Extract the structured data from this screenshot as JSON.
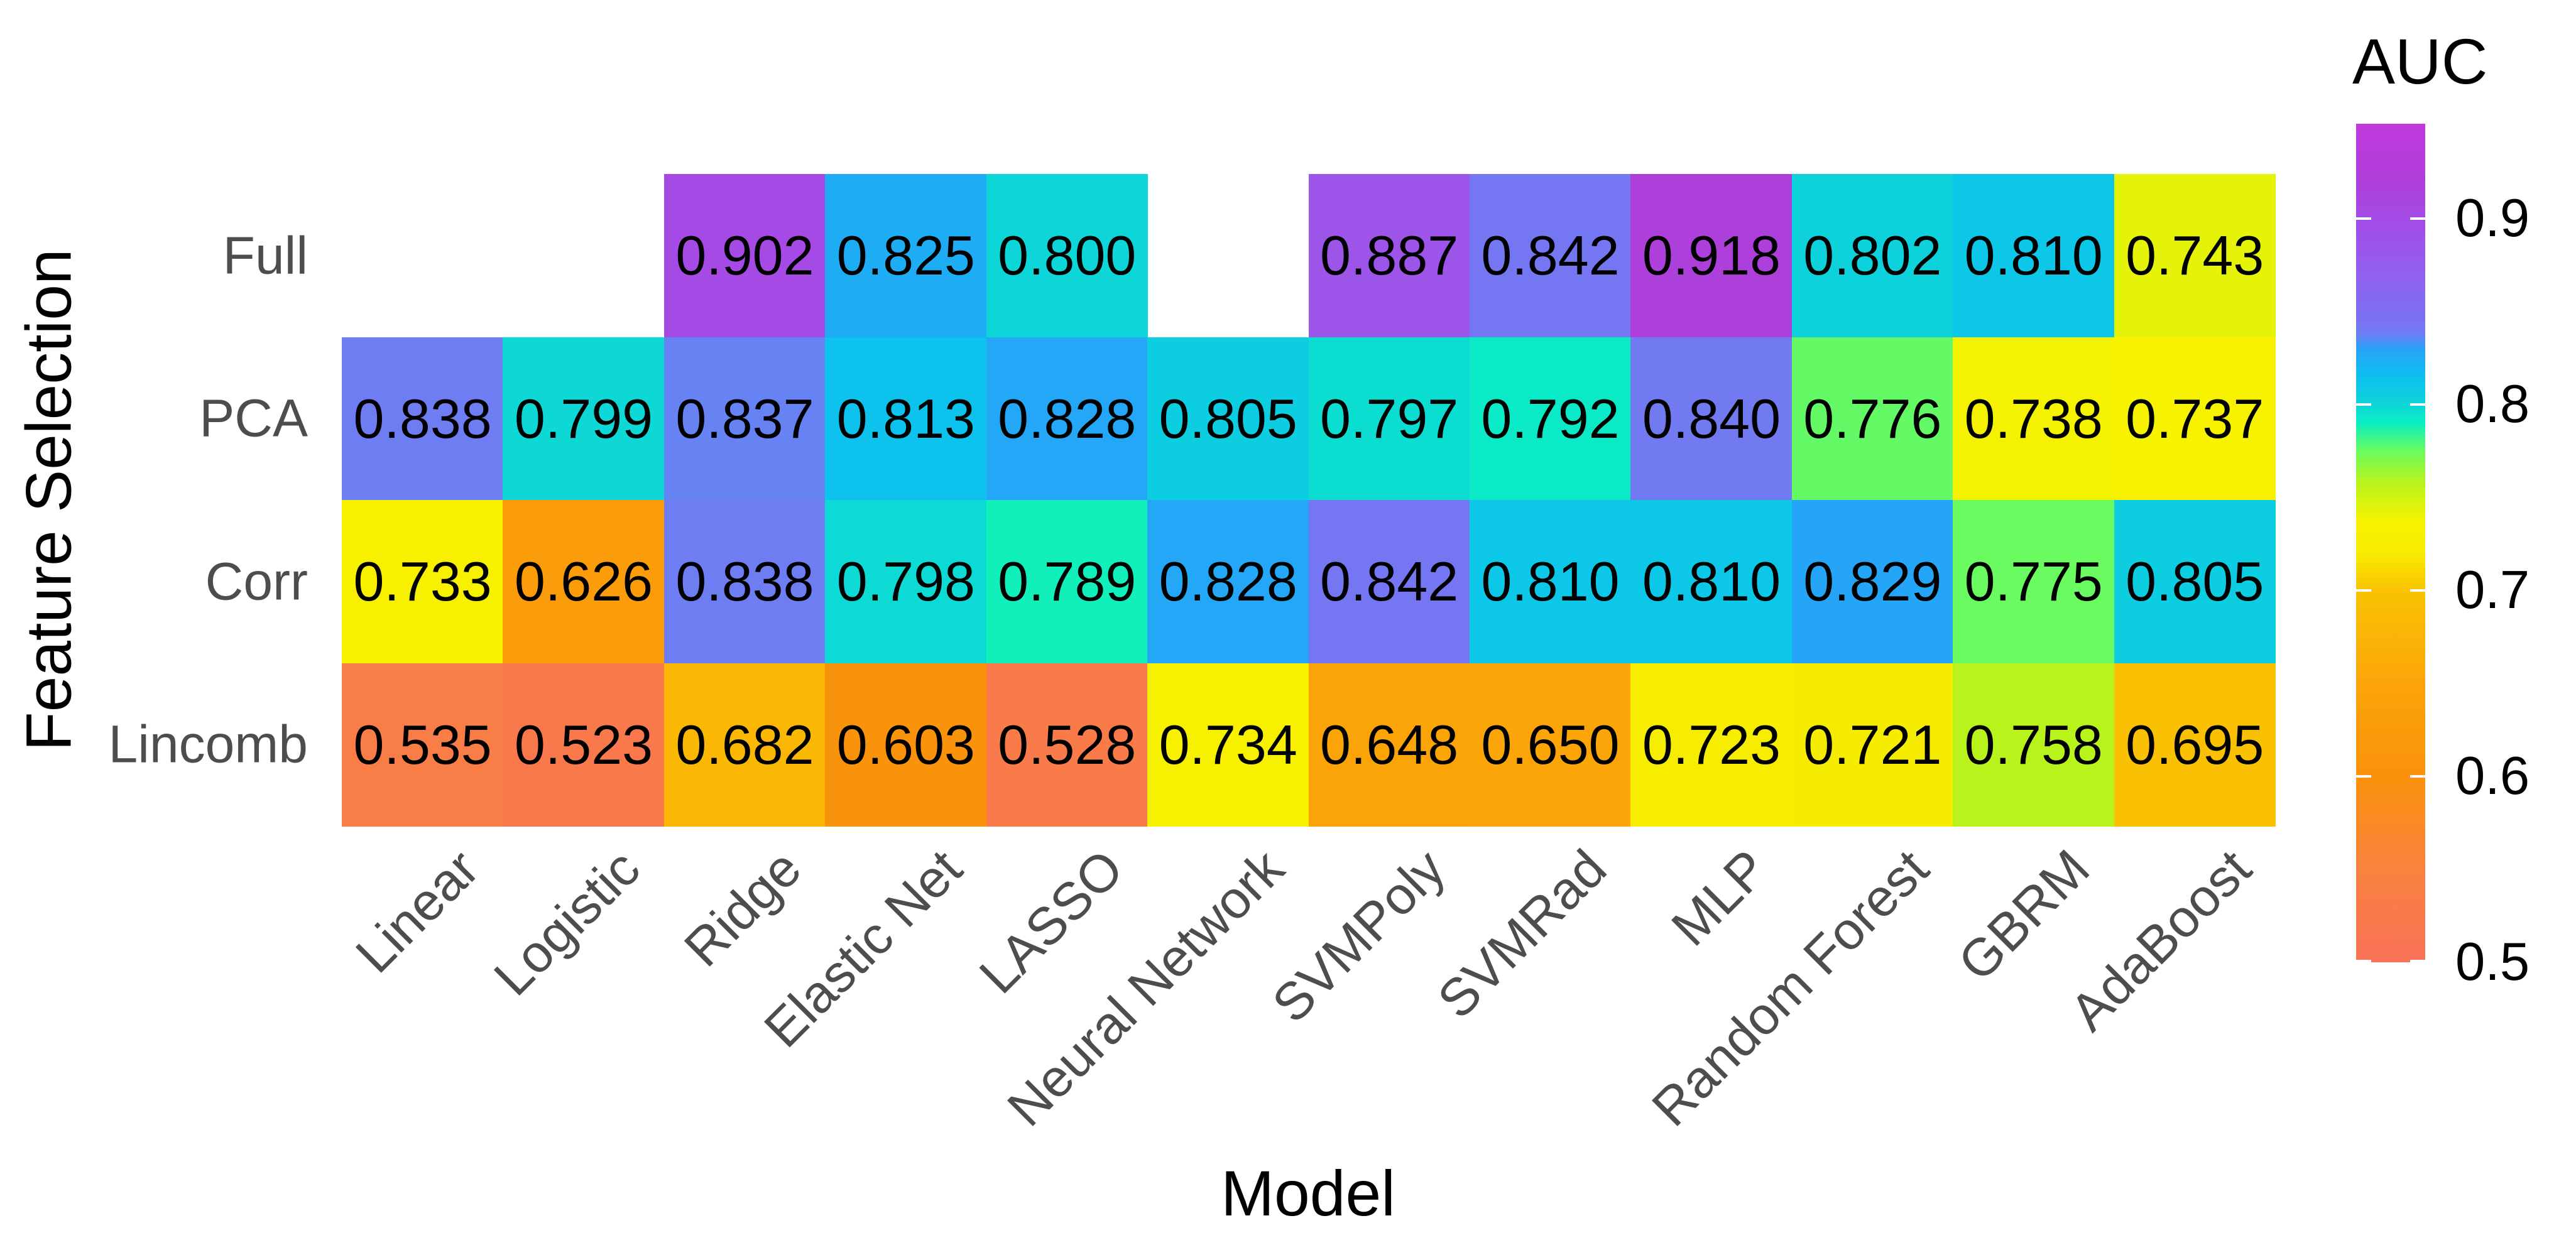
{
  "chart_data": {
    "type": "heatmap",
    "xlabel": "Model",
    "ylabel": "Feature Selection",
    "x_categories": [
      "Linear",
      "Logistic",
      "Ridge",
      "Elastic Net",
      "LASSO",
      "Neural Network",
      "SVMPoly",
      "SVMRad",
      "MLP",
      "Random Forest",
      "GBRM",
      "AdaBoost"
    ],
    "y_categories": [
      "Full",
      "PCA",
      "Corr",
      "Lincomb"
    ],
    "series": [
      {
        "name": "Full",
        "values": [
          null,
          null,
          0.902,
          0.825,
          0.8,
          null,
          0.887,
          0.842,
          0.918,
          0.802,
          0.81,
          0.743
        ]
      },
      {
        "name": "PCA",
        "values": [
          0.838,
          0.799,
          0.837,
          0.813,
          0.828,
          0.805,
          0.797,
          0.792,
          0.84,
          0.776,
          0.738,
          0.737
        ]
      },
      {
        "name": "Corr",
        "values": [
          0.733,
          0.626,
          0.838,
          0.798,
          0.789,
          0.828,
          0.842,
          0.81,
          0.81,
          0.829,
          0.775,
          0.805
        ]
      },
      {
        "name": "Lincomb",
        "values": [
          0.535,
          0.523,
          0.682,
          0.603,
          0.528,
          0.734,
          0.648,
          0.65,
          0.723,
          0.721,
          0.758,
          0.695
        ]
      }
    ],
    "value_decimals": 3,
    "grid": false,
    "legend": {
      "title": "AUC",
      "position": "right",
      "domain": [
        0.5,
        0.951
      ],
      "ticks": [
        {
          "label": "0.9",
          "value": 0.9
        },
        {
          "label": "0.8",
          "value": 0.8
        },
        {
          "label": "0.7",
          "value": 0.7
        },
        {
          "label": "0.6",
          "value": 0.6
        },
        {
          "label": "0.5",
          "value": 0.5
        }
      ]
    },
    "colormap": [
      {
        "v": 0.5,
        "c": "#F97257"
      },
      {
        "v": 0.55,
        "c": "#F9823F"
      },
      {
        "v": 0.6,
        "c": "#FA920C"
      },
      {
        "v": 0.65,
        "c": "#FBA508"
      },
      {
        "v": 0.7,
        "c": "#F9C303"
      },
      {
        "v": 0.72,
        "c": "#F6EC00"
      },
      {
        "v": 0.737,
        "c": "#F7F200"
      },
      {
        "v": 0.758,
        "c": "#B8F41C"
      },
      {
        "v": 0.775,
        "c": "#69FB5F"
      },
      {
        "v": 0.79,
        "c": "#0BEFC2"
      },
      {
        "v": 0.8,
        "c": "#0DD5D8"
      },
      {
        "v": 0.815,
        "c": "#0DC0F0"
      },
      {
        "v": 0.83,
        "c": "#27A3F8"
      },
      {
        "v": 0.838,
        "c": "#6F7DF2"
      },
      {
        "v": 0.845,
        "c": "#7A72F2"
      },
      {
        "v": 0.87,
        "c": "#9160EE"
      },
      {
        "v": 0.9,
        "c": "#A44BE5"
      },
      {
        "v": 0.92,
        "c": "#AE3ED9"
      },
      {
        "v": 0.951,
        "c": "#C139DC"
      }
    ],
    "colors": {
      "background": "#FFFFFF",
      "cell_text": "#000000",
      "axis_text": "#4D4D4D",
      "title_text": "#000000",
      "legend_tick_mark": "#FFFFFF"
    }
  }
}
